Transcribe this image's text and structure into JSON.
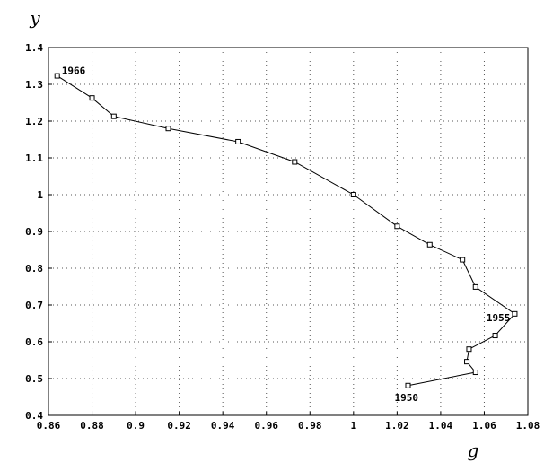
{
  "chart_data": {
    "type": "line",
    "xlabel": "g",
    "ylabel": "y",
    "xlim": [
      0.86,
      1.08
    ],
    "ylim": [
      0.4,
      1.4
    ],
    "x_ticks": [
      "0.86",
      "0.88",
      "0.9",
      "0.92",
      "0.94",
      "0.96",
      "0.98",
      "1",
      "1.02",
      "1.04",
      "1.06",
      "1.08"
    ],
    "y_ticks": [
      "0.4",
      "0.5",
      "0.6",
      "0.7",
      "0.8",
      "0.9",
      "1",
      "1.1",
      "1.2",
      "1.3",
      "1.4"
    ],
    "grid": true,
    "series": [
      {
        "points": [
          {
            "x": 1.025,
            "y": 0.481
          },
          {
            "x": 1.056,
            "y": 0.517
          },
          {
            "x": 1.052,
            "y": 0.546
          },
          {
            "x": 1.053,
            "y": 0.58
          },
          {
            "x": 1.065,
            "y": 0.617
          },
          {
            "x": 1.074,
            "y": 0.676
          },
          {
            "x": 1.056,
            "y": 0.749
          },
          {
            "x": 1.05,
            "y": 0.823
          },
          {
            "x": 1.035,
            "y": 0.864
          },
          {
            "x": 1.02,
            "y": 0.914
          },
          {
            "x": 1.0,
            "y": 1.0
          },
          {
            "x": 0.973,
            "y": 1.089
          },
          {
            "x": 0.947,
            "y": 1.144
          },
          {
            "x": 0.915,
            "y": 1.18
          },
          {
            "x": 0.89,
            "y": 1.213
          },
          {
            "x": 0.88,
            "y": 1.263
          },
          {
            "x": 0.864,
            "y": 1.323
          }
        ]
      }
    ],
    "annotations": [
      {
        "text": "1950",
        "x": 1.025,
        "y": 0.481
      },
      {
        "text": "1955",
        "x": 1.074,
        "y": 0.676
      },
      {
        "text": "1966",
        "x": 0.864,
        "y": 1.323
      }
    ]
  }
}
